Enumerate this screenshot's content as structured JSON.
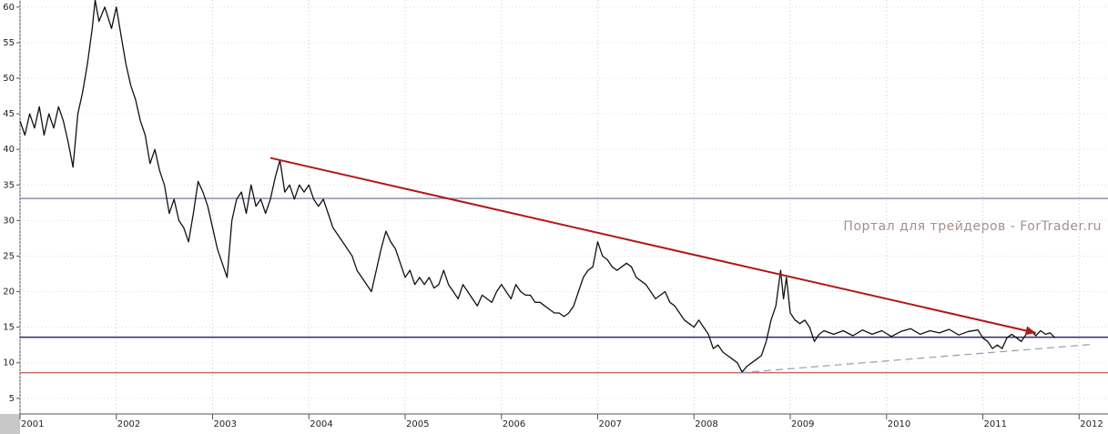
{
  "chart_data": {
    "type": "line",
    "watermark": "Портал для трейдеров - ForTrader.ru",
    "xlim": [
      2001,
      2012.3
    ],
    "xticks": [
      2001,
      2002,
      2003,
      2004,
      2005,
      2006,
      2007,
      2008,
      2009,
      2010,
      2011,
      2012
    ],
    "ylim": [
      2.8,
      61
    ],
    "yticks": [
      60,
      55,
      50,
      45,
      40,
      35,
      30,
      25,
      20,
      15,
      10,
      5
    ],
    "grid": true,
    "series": [
      {
        "color": "#111111",
        "x": [
          2001.0,
          2001.05,
          2001.1,
          2001.15,
          2001.2,
          2001.25,
          2001.3,
          2001.35,
          2001.4,
          2001.45,
          2001.5,
          2001.55,
          2001.6,
          2001.65,
          2001.7,
          2001.75,
          2001.78,
          2001.82,
          2001.88,
          2001.95,
          2002.0,
          2002.05,
          2002.1,
          2002.15,
          2002.2,
          2002.25,
          2002.3,
          2002.35,
          2002.4,
          2002.45,
          2002.5,
          2002.55,
          2002.6,
          2002.65,
          2002.7,
          2002.75,
          2002.8,
          2002.85,
          2002.9,
          2002.95,
          2003.0,
          2003.05,
          2003.1,
          2003.15,
          2003.2,
          2003.25,
          2003.3,
          2003.35,
          2003.4,
          2003.45,
          2003.5,
          2003.55,
          2003.6,
          2003.65,
          2003.7,
          2003.75,
          2003.8,
          2003.85,
          2003.9,
          2003.95,
          2004.0,
          2004.05,
          2004.1,
          2004.15,
          2004.2,
          2004.25,
          2004.3,
          2004.35,
          2004.4,
          2004.45,
          2004.5,
          2004.55,
          2004.6,
          2004.65,
          2004.7,
          2004.75,
          2004.8,
          2004.85,
          2004.9,
          2004.95,
          2005.0,
          2005.05,
          2005.1,
          2005.15,
          2005.2,
          2005.25,
          2005.3,
          2005.35,
          2005.4,
          2005.45,
          2005.5,
          2005.55,
          2005.6,
          2005.65,
          2005.7,
          2005.75,
          2005.8,
          2005.85,
          2005.9,
          2005.95,
          2006.0,
          2006.05,
          2006.1,
          2006.15,
          2006.2,
          2006.25,
          2006.3,
          2006.35,
          2006.4,
          2006.45,
          2006.5,
          2006.55,
          2006.6,
          2006.65,
          2006.7,
          2006.75,
          2006.8,
          2006.85,
          2006.9,
          2006.95,
          2007.0,
          2007.05,
          2007.1,
          2007.15,
          2007.2,
          2007.25,
          2007.3,
          2007.35,
          2007.4,
          2007.45,
          2007.5,
          2007.55,
          2007.6,
          2007.65,
          2007.7,
          2007.75,
          2007.8,
          2007.85,
          2007.9,
          2007.95,
          2008.0,
          2008.05,
          2008.1,
          2008.15,
          2008.2,
          2008.25,
          2008.3,
          2008.35,
          2008.4,
          2008.45,
          2008.5,
          2008.55,
          2008.6,
          2008.65,
          2008.7,
          2008.75,
          2008.8,
          2008.85,
          2008.9,
          2008.93,
          2008.96,
          2009.0,
          2009.05,
          2009.1,
          2009.15,
          2009.2,
          2009.25,
          2009.3,
          2009.35,
          2009.45,
          2009.55,
          2009.65,
          2009.75,
          2009.85,
          2009.95,
          2010.05,
          2010.15,
          2010.25,
          2010.35,
          2010.45,
          2010.55,
          2010.65,
          2010.75,
          2010.85,
          2010.95,
          2011.0,
          2011.05,
          2011.1,
          2011.15,
          2011.2,
          2011.25,
          2011.3,
          2011.35,
          2011.4,
          2011.45,
          2011.5,
          2011.55,
          2011.6,
          2011.65,
          2011.7,
          2011.75
        ],
        "values": [
          44,
          42,
          45,
          43,
          46,
          42,
          45,
          43,
          46,
          44,
          41,
          37.5,
          45,
          48,
          52,
          57,
          61,
          58,
          60,
          57,
          60,
          56,
          52,
          49,
          47,
          44,
          42,
          38,
          40,
          37,
          35,
          31,
          33,
          30,
          29,
          27,
          31,
          35.5,
          34,
          32,
          29,
          26,
          24,
          22,
          30,
          33,
          34,
          31,
          35,
          32,
          33,
          31,
          33,
          36,
          38.5,
          34,
          35,
          33,
          35,
          34,
          35,
          33,
          32,
          33,
          31,
          29,
          28,
          27,
          26,
          25,
          23,
          22,
          21,
          20,
          23,
          26,
          28.5,
          27,
          26,
          24,
          22,
          23,
          21,
          22,
          21,
          22,
          20.5,
          21,
          23,
          21,
          20,
          19,
          21,
          20,
          19,
          18,
          19.5,
          19,
          18.5,
          20,
          21,
          20,
          19,
          21,
          20,
          19.5,
          19.5,
          18.5,
          18.5,
          18,
          17.5,
          17,
          17,
          16.5,
          17,
          18,
          20,
          22,
          23,
          23.5,
          27,
          25,
          24.5,
          23.5,
          23,
          23.5,
          24,
          23.5,
          22,
          21.5,
          21,
          20,
          19,
          19.5,
          20,
          18.5,
          18,
          17,
          16,
          15.5,
          15,
          16,
          15,
          14,
          12,
          12.5,
          11.5,
          11,
          10.5,
          10,
          8.7,
          9.5,
          10,
          10.5,
          11,
          13,
          16,
          18,
          23,
          19,
          22,
          17,
          16,
          15.5,
          16,
          15,
          13,
          14,
          14.5,
          14,
          14.5,
          13.8,
          14.6,
          14,
          14.5,
          13.7,
          14.4,
          14.8,
          14,
          14.5,
          14.2,
          14.7,
          13.9,
          14.4,
          14.6,
          13.5,
          13,
          12,
          12.5,
          12,
          13.5,
          14,
          13.5,
          13,
          14,
          14.5,
          13.8,
          14.5,
          14,
          14.2,
          13.5
        ]
      }
    ],
    "hlines": [
      {
        "value": 33.1,
        "color": "#8d91ad"
      },
      {
        "value": 13.6,
        "color": "#2b2f66"
      },
      {
        "value": 8.6,
        "color": "#c46a6a"
      }
    ],
    "trend_arrow": {
      "x": [
        2003.6,
        2011.55
      ],
      "y": [
        38.8,
        14.2
      ],
      "color": "#b01818"
    },
    "dashed_line": {
      "x": [
        2008.48,
        2012.15
      ],
      "y": [
        8.6,
        12.6
      ],
      "color": "#9a9ab8"
    }
  }
}
